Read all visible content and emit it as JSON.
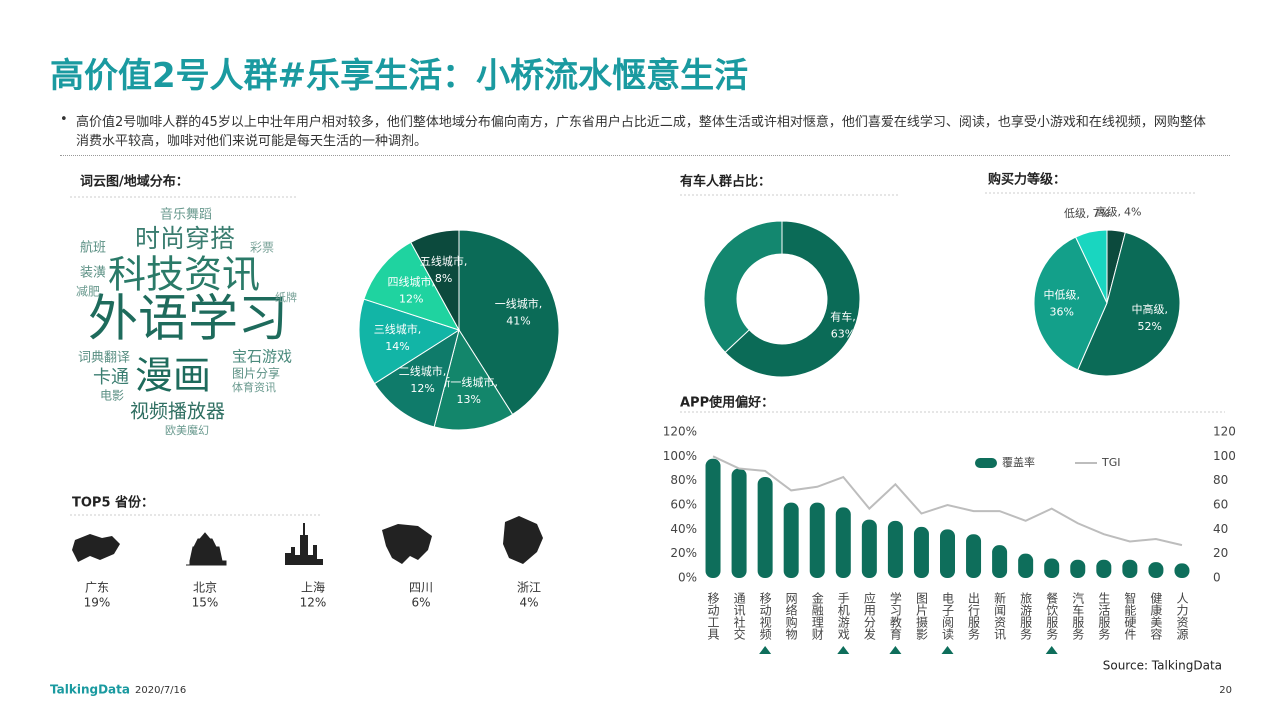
{
  "header": {
    "title": "高价值2号人群#乐享生活：小桥流水惬意生活",
    "bullet": "高价值2号咖啡人群的45岁以上中壮年用户相对较多，他们整体地域分布偏向南方，广东省用户占比近二成，整体生活或许相对惬意，他们喜爱在线学习、阅读，也享受小游戏和在线视频，网购整体消费水平较高，咖啡对他们来说可能是每天生活的一种调剂。"
  },
  "wordcloud": {
    "title": "词云图/地域分布：",
    "words": [
      "外语学习",
      "科技资讯",
      "漫画",
      "时尚穿搭",
      "视频播放器",
      "宝石游戏",
      "卡通",
      "词典翻译",
      "音乐舞蹈",
      "图片分享",
      "体育资讯",
      "电影",
      "欧美魔幻",
      "航班",
      "装潢",
      "减肥",
      "彩票",
      "纸牌"
    ]
  },
  "top5": {
    "title": "TOP5 省份：",
    "items": [
      {
        "name": "广东",
        "value": "19%"
      },
      {
        "name": "北京",
        "value": "15%"
      },
      {
        "name": "上海",
        "value": "12%"
      },
      {
        "name": "四川",
        "value": "6%"
      },
      {
        "name": "浙江",
        "value": "4%"
      }
    ]
  },
  "chart_data": [
    {
      "type": "pie",
      "categories": [
        "一线城市,",
        "新一线城市,",
        "二线城市,",
        "三线城市,",
        "四线城市,",
        "五线城市,"
      ],
      "values": [
        41,
        13,
        12,
        14,
        12,
        8
      ],
      "value_labels": [
        "41%",
        "13%",
        "12%",
        "14%",
        "12%",
        "8%"
      ],
      "colors": [
        "#0b6b57",
        "#13866b",
        "#0f7b6a",
        "#12b5a6",
        "#1fd3a0",
        "#0c4a3d"
      ]
    },
    {
      "type": "donut",
      "title": "有车人群占比：",
      "categories": [
        "有车,",
        null
      ],
      "values": [
        63,
        37
      ],
      "value_labels": [
        "63%",
        null
      ],
      "colors": [
        "#0b6b57",
        "#13876f"
      ]
    },
    {
      "type": "pie",
      "title": "购买力等级：",
      "categories": [
        "高级,",
        "中高级,",
        "中低级,",
        "低级,"
      ],
      "values": [
        4,
        52,
        36,
        7
      ],
      "value_labels": [
        "4%",
        "52%",
        "36%",
        "7%"
      ],
      "colors": [
        "#0c4a3d",
        "#0b6b57",
        "#13a08a",
        "#19d6c0"
      ]
    },
    {
      "type": "bar",
      "title": "APP使用偏好：",
      "categories": [
        "移动工具",
        "通讯社交",
        "移动视频",
        "网络购物",
        "金融理财",
        "手机游戏",
        "应用分发",
        "学习教育",
        "图片摄影",
        "电子阅读",
        "出行服务",
        "新闻资讯",
        "旅游服务",
        "餐饮服务",
        "汽车服务",
        "生活服务",
        "智能硬件",
        "健康美容",
        "人力资源"
      ],
      "series": [
        {
          "name": "覆盖率",
          "color": "#0e6e5b",
          "values": [
            98,
            90,
            83,
            62,
            62,
            58,
            48,
            47,
            42,
            40,
            36,
            27,
            20,
            16,
            15,
            15,
            15,
            13,
            12
          ]
        },
        {
          "name": "TGI",
          "color": "#bdbdbd",
          "type": "line",
          "axis": "y2",
          "values": [
            100,
            90,
            88,
            72,
            75,
            83,
            57,
            77,
            53,
            60,
            55,
            55,
            47,
            57,
            45,
            36,
            30,
            32,
            27
          ]
        }
      ],
      "ylim": [
        0,
        120
      ],
      "yticks": [
        {
          "value": 0,
          "label": "0%"
        },
        {
          "value": 20,
          "label": "20%"
        },
        {
          "value": 40,
          "label": "40%"
        },
        {
          "value": 60,
          "label": "60%"
        },
        {
          "value": 80,
          "label": "80%"
        },
        {
          "value": 100,
          "label": "100%"
        },
        {
          "value": 120,
          "label": "120%"
        }
      ],
      "y2lim": [
        0,
        120
      ],
      "y2ticks": [
        0,
        20,
        40,
        60,
        80,
        100,
        120
      ],
      "source": "Source: TalkingData"
    }
  ],
  "footer": {
    "brand": "TalkingData",
    "date": "2020/7/16",
    "page": "20"
  }
}
